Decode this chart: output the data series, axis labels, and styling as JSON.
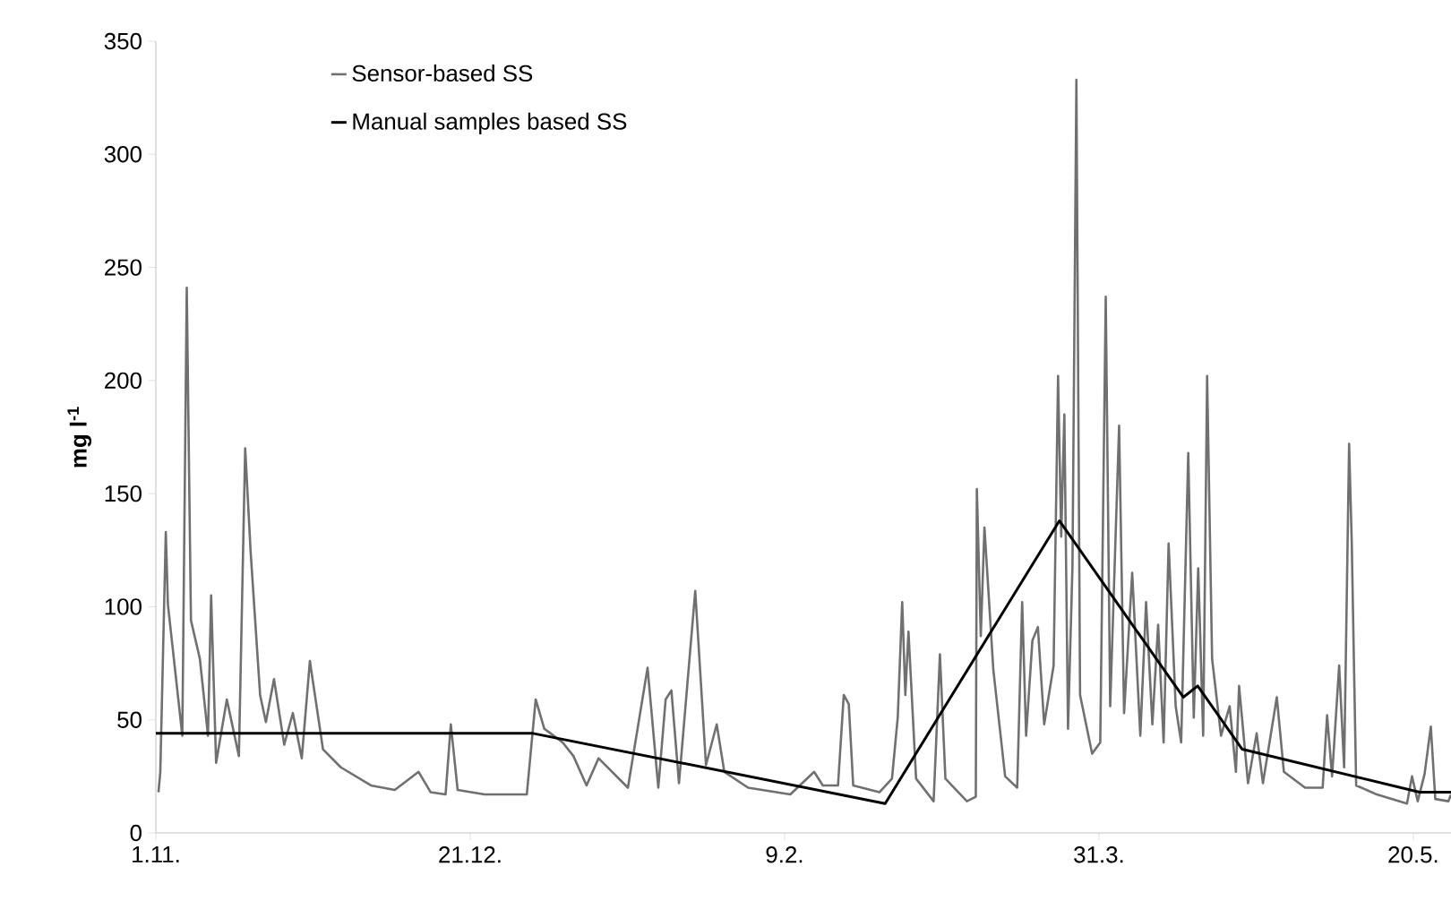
{
  "chart_data": {
    "type": "line",
    "ylabel": "mg l$^{-1}$",
    "xlim": [
      "2010-11-01",
      "2011-05-26"
    ],
    "ylim": [
      0,
      350
    ],
    "xticks": [
      {
        "value": "2010-11-01",
        "label": "1.11."
      },
      {
        "value": "2010-12-21",
        "label": "21.12."
      },
      {
        "value": "2011-02-09",
        "label": "9.2."
      },
      {
        "value": "2011-03-31",
        "label": "31.3."
      },
      {
        "value": "2011-05-20",
        "label": "20.5."
      }
    ],
    "yticks": [
      0,
      50,
      100,
      150,
      200,
      250,
      300,
      350
    ],
    "legend": "top left",
    "line_style": "solid",
    "series": [
      {
        "name": "Sensor-based SS",
        "color": "#707070",
        "x": [
          "2010-11-01T10:00",
          "2010-11-01T17:00",
          "2010-11-02T14:00",
          "2010-11-02T22:00",
          "2010-11-05T05:00",
          "2010-11-05T22:00",
          "2010-11-06T14:00",
          "2010-11-08T00:00",
          "2010-11-09T07:00",
          "2010-11-09T19:00",
          "2010-11-10T14:00",
          "2010-11-12T07:00",
          "2010-11-14T05:00",
          "2010-11-15T05:00",
          "2010-11-16T02:00",
          "2010-11-17T14:00",
          "2010-11-18T12:00",
          "2010-11-19T19:00",
          "2010-11-21T10:00",
          "2010-11-22T19:00",
          "2010-11-24T05:00",
          "2010-11-25T12:00",
          "2010-11-27T14:00",
          "2010-11-30T10:00",
          "2010-12-05T05:00",
          "2010-12-09T00:00",
          "2010-12-12T19:00",
          "2010-12-14T17:00",
          "2010-12-17T02:00",
          "2010-12-17T22:00",
          "2010-12-19T00:00",
          "2010-12-23T07:00",
          "2010-12-30T00:00",
          "2010-12-31T10:00",
          "2011-01-01T19:00",
          "2011-01-02T19:00",
          "2011-01-04T17:00",
          "2011-01-06T10:00",
          "2011-01-08T12:00",
          "2011-01-10T10:00",
          "2011-01-15T02:00",
          "2011-01-18T05:00",
          "2011-01-19T22:00",
          "2011-01-21T02:00",
          "2011-01-22T00:00",
          "2011-01-23T05:00",
          "2011-01-25T19:00",
          "2011-01-27T12:00",
          "2011-01-29T05:00",
          "2011-01-30T10:00",
          "2011-02-03T05:00",
          "2011-02-09T22:00",
          "2011-02-13T17:00",
          "2011-02-15T02:00",
          "2011-02-17T12:00",
          "2011-02-18T10:00",
          "2011-02-19T05:00",
          "2011-02-19T22:00",
          "2011-02-24T02:00",
          "2011-02-26T02:00",
          "2011-02-27T00:00",
          "2011-02-27T17:00",
          "2011-02-28T05:00",
          "2011-02-28T17:00",
          "2011-03-01T22:00",
          "2011-03-04T17:00",
          "2011-03-05T17:00",
          "2011-03-06T14:00",
          "2011-03-10T00:00",
          "2011-03-11T10:00",
          "2011-03-11T14:00",
          "2011-03-12T05:00",
          "2011-03-12T19:00",
          "2011-03-14T05:00",
          "2011-03-16T02:00",
          "2011-03-18T00:00",
          "2011-03-18T19:00",
          "2011-03-19T10:00",
          "2011-03-20T10:00",
          "2011-03-21T07:00",
          "2011-03-22T07:00",
          "2011-03-23T19:00",
          "2011-03-24T12:00",
          "2011-03-25T00:00",
          "2011-03-25T12:00",
          "2011-03-26T02:00",
          "2011-03-26T19:00",
          "2011-03-27T10:00",
          "2011-03-28T00:00",
          "2011-03-29T22:00",
          "2011-03-31T05:00",
          "2011-04-01T02:00",
          "2011-04-01T19:00",
          "2011-04-03T05:00",
          "2011-04-04T00:00",
          "2011-04-05T07:00",
          "2011-04-06T14:00",
          "2011-04-07T12:00",
          "2011-04-08T12:00",
          "2011-04-09T10:00",
          "2011-04-10T07:00",
          "2011-04-11T02:00",
          "2011-04-12T05:00",
          "2011-04-13T02:00",
          "2011-04-14T05:00",
          "2011-04-15T02:00",
          "2011-04-15T19:00",
          "2011-04-16T14:00",
          "2011-04-17T05:00",
          "2011-04-18T00:00",
          "2011-04-19T10:00",
          "2011-04-20T19:00",
          "2011-04-21T19:00",
          "2011-04-22T07:00",
          "2011-04-23T17:00",
          "2011-04-25T02:00",
          "2011-04-26T02:00",
          "2011-04-28T07:00",
          "2011-04-29T10:00",
          "2011-05-02T19:00",
          "2011-05-05T14:00",
          "2011-05-06T07:00",
          "2011-05-07T02:00",
          "2011-05-08T05:00",
          "2011-05-09T00:00",
          "2011-05-09T19:00",
          "2011-05-10T05:00",
          "2011-05-10T22:00",
          "2011-05-14T05:00",
          "2011-05-19T00:00",
          "2011-05-19T19:00",
          "2011-05-20T17:00",
          "2011-05-21T19:00",
          "2011-05-22T19:00",
          "2011-05-23T12:00",
          "2011-05-25T14:00",
          "2011-05-26T00:00"
        ],
        "values": [
          18,
          27,
          133,
          101,
          43,
          241,
          94,
          77,
          43,
          105,
          31,
          59,
          34,
          170,
          124,
          61,
          49,
          68,
          39,
          53,
          33,
          76,
          37,
          29,
          21,
          19,
          27,
          18,
          17,
          48,
          19,
          17,
          17,
          59,
          46,
          44,
          40,
          34,
          21,
          33,
          20,
          73,
          20,
          59,
          63,
          22,
          107,
          30,
          48,
          27,
          20,
          17,
          27,
          21,
          21,
          61,
          57,
          21,
          18,
          24,
          51,
          102,
          61,
          89,
          24,
          14,
          79,
          24,
          14,
          16,
          152,
          87,
          135,
          72,
          25,
          20,
          102,
          43,
          85,
          91,
          48,
          74,
          202,
          131,
          185,
          46,
          118,
          333,
          61,
          35,
          40,
          237,
          56,
          180,
          53,
          115,
          43,
          102,
          48,
          92,
          40,
          128,
          56,
          40,
          168,
          51,
          117,
          43,
          202,
          77,
          43,
          56,
          27,
          65,
          22,
          44,
          22,
          60,
          27,
          20,
          20,
          52,
          25,
          74,
          29,
          172,
          129,
          21,
          17,
          13,
          25,
          14,
          26,
          47,
          15,
          14,
          17
        ]
      },
      {
        "name": "Manual samples based SS",
        "color": "#000000",
        "x": [
          "2010-11-01",
          "2010-12-31",
          "2011-02-25",
          "2011-03-24T17:00",
          "2011-04-13T10:00",
          "2011-04-15T17:00",
          "2011-04-22T19:00",
          "2011-05-21",
          "2011-05-26"
        ],
        "values": [
          44,
          44,
          13,
          138,
          60,
          65,
          37,
          18,
          18
        ]
      }
    ]
  }
}
